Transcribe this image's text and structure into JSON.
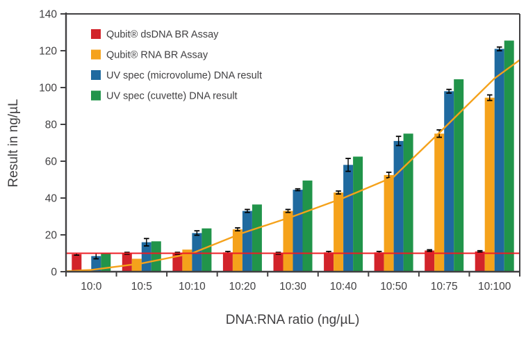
{
  "chart_data": {
    "type": "bar",
    "title": "",
    "xlabel": "DNA:RNA ratio (ng/µL)",
    "ylabel": "Result in ng/µL",
    "categories": [
      "10:0",
      "10:5",
      "10:10",
      "10:20",
      "10:30",
      "10:40",
      "10:50",
      "10:75",
      "10:100"
    ],
    "ylim": [
      0,
      140
    ],
    "ytick_step": 20,
    "grid": false,
    "legend_position": "top-left-inside",
    "series": [
      {
        "name": "Qubit® dsDNA BR Assay",
        "color": "#d2232a",
        "values": [
          9.5,
          10,
          10,
          10.5,
          10,
          10.5,
          10.5,
          11.5,
          11
        ],
        "errors": [
          0.5,
          0.5,
          0.5,
          0.5,
          0.5,
          0.5,
          0.5,
          0.4,
          0.4
        ]
      },
      {
        "name": "Qubit® RNA BR Assay",
        "color": "#f5a21b",
        "values": [
          1.2,
          7,
          12,
          23,
          33,
          43,
          52.5,
          75,
          94.5
        ],
        "errors": [
          0,
          0,
          0,
          0.8,
          0.8,
          0.8,
          1.5,
          2,
          1.5
        ]
      },
      {
        "name": "UV spec (microvolume) DNA result",
        "color": "#1f6a9f",
        "values": [
          8.5,
          16,
          21,
          33,
          44.5,
          58,
          71,
          98,
          121
        ],
        "errors": [
          1.5,
          2,
          1.2,
          0.8,
          0.5,
          3.5,
          2.5,
          1,
          1
        ]
      },
      {
        "name": "UV spec (cuvette) DNA result",
        "color": "#21944a",
        "values": [
          10,
          16.5,
          23.5,
          36.5,
          49.5,
          62.5,
          75,
          104.5,
          125.5
        ],
        "errors": [
          0,
          0,
          0,
          0,
          0,
          0,
          0,
          0,
          0
        ]
      }
    ],
    "reference_line": {
      "value": 10,
      "color": "#ed1c24"
    },
    "trend_line": {
      "color": "#f5a21b",
      "start_value": 0.2,
      "values_at_categories": [
        1,
        4.5,
        10,
        21,
        30,
        40,
        51.5,
        78,
        105
      ],
      "end_value": 115
    },
    "axis_color": "#414042",
    "error_bar_color": "#000000"
  }
}
